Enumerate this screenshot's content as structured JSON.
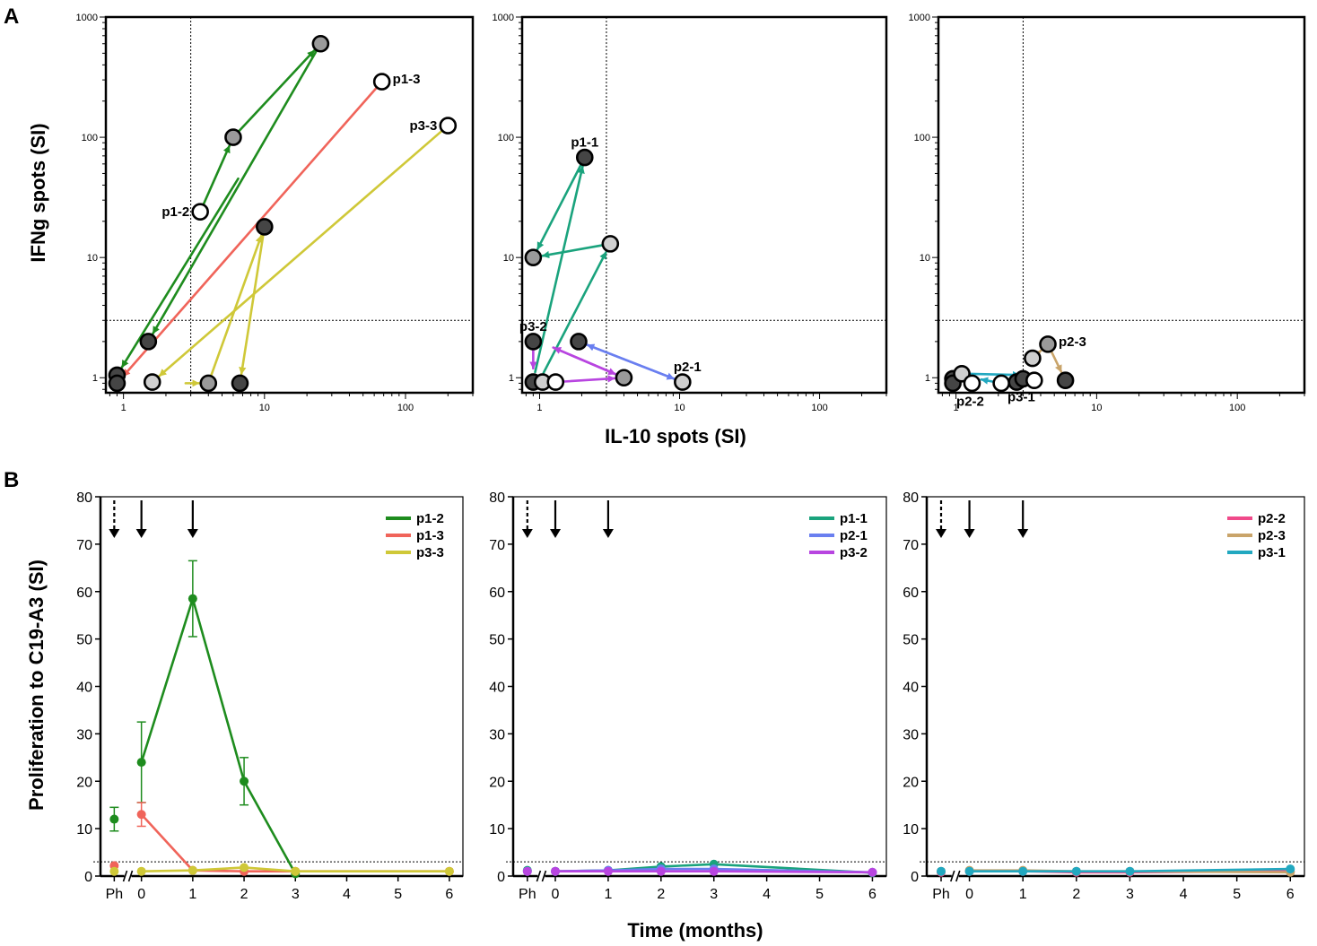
{
  "figure": {
    "panel_labels": [
      "A",
      "B"
    ],
    "a_xlabel": "IL-10 spots (SI)",
    "a_ylabel": "IFNg spots (SI)",
    "b_xlabel": "Time (months)",
    "b_ylabel": "Proliferation to C19-A3 (SI)"
  },
  "chart_data": [
    {
      "type": "scatter",
      "panel": "A-left",
      "xscale": "log",
      "yscale": "log",
      "xlim": [
        0.75,
        300
      ],
      "ylim": [
        0.75,
        1000
      ],
      "xticks": [
        "1",
        "10",
        "100"
      ],
      "yticks": [
        "1",
        "10",
        "100",
        "1000"
      ],
      "threshold_x": 3,
      "threshold_y": 3,
      "points": [
        {
          "x": 3.5,
          "y": 24,
          "fill": "white",
          "label": "p1-2",
          "label_side": "left"
        },
        {
          "x": 6,
          "y": 100,
          "fill": "grey"
        },
        {
          "x": 25,
          "y": 600,
          "fill": "grey"
        },
        {
          "x": 1.5,
          "y": 2,
          "fill": "dark"
        },
        {
          "x": 0.9,
          "y": 1.05,
          "fill": "dark"
        },
        {
          "x": 0.9,
          "y": 0.9,
          "fill": "dark"
        },
        {
          "x": 68,
          "y": 290,
          "fill": "white",
          "label": "p1-3",
          "label_side": "right"
        },
        {
          "x": 10,
          "y": 18,
          "fill": "dark"
        },
        {
          "x": 200,
          "y": 125,
          "fill": "white",
          "label": "p3-3",
          "label_side": "left"
        },
        {
          "x": 1.6,
          "y": 0.92,
          "fill": "light"
        },
        {
          "x": 4,
          "y": 0.9,
          "fill": "grey"
        },
        {
          "x": 6.7,
          "y": 0.9,
          "fill": "dark"
        }
      ],
      "arrows": [
        {
          "color": "#1e8c1e",
          "from": [
            3.5,
            24
          ],
          "to": [
            6,
            100
          ]
        },
        {
          "color": "#1e8c1e",
          "from": [
            6,
            100
          ],
          "to": [
            25,
            600
          ]
        },
        {
          "color": "#1e8c1e",
          "from": [
            25,
            600
          ],
          "to": [
            1.5,
            2
          ]
        },
        {
          "color": "#1e8c1e",
          "from": [
            7,
            52
          ],
          "to": [
            0.9,
            1.05
          ]
        },
        {
          "color": "#f0645a",
          "from": [
            68,
            290
          ],
          "to": [
            0.9,
            0.9
          ]
        },
        {
          "color": "#cfc838",
          "from": [
            200,
            125
          ],
          "to": [
            1.6,
            0.92
          ]
        },
        {
          "color": "#cfc838",
          "from": [
            2.4,
            0.9
          ],
          "to": [
            4,
            0.9
          ]
        },
        {
          "color": "#cfc838",
          "from": [
            4,
            0.9
          ],
          "to": [
            10,
            18
          ]
        },
        {
          "color": "#cfc838",
          "from": [
            10,
            18
          ],
          "to": [
            6.7,
            0.9
          ]
        }
      ]
    },
    {
      "type": "scatter",
      "panel": "A-middle",
      "xscale": "log",
      "yscale": "log",
      "xlim": [
        0.75,
        300
      ],
      "ylim": [
        0.75,
        1000
      ],
      "xticks": [
        "1",
        "10",
        "100"
      ],
      "yticks": [
        "1",
        "10",
        "100",
        "1000"
      ],
      "threshold_x": 3,
      "threshold_y": 3,
      "points": [
        {
          "x": 2.1,
          "y": 68,
          "fill": "dark",
          "label": "p1-1",
          "label_side": "above"
        },
        {
          "x": 3.2,
          "y": 13,
          "fill": "light"
        },
        {
          "x": 0.9,
          "y": 10,
          "fill": "grey"
        },
        {
          "x": 0.9,
          "y": 2,
          "fill": "dark",
          "label": "p3-2",
          "label_side": "above"
        },
        {
          "x": 1.9,
          "y": 2,
          "fill": "dark"
        },
        {
          "x": 0.9,
          "y": 0.92,
          "fill": "dark"
        },
        {
          "x": 1.05,
          "y": 0.92,
          "fill": "light"
        },
        {
          "x": 1.3,
          "y": 0.92,
          "fill": "white"
        },
        {
          "x": 4,
          "y": 1,
          "fill": "grey"
        },
        {
          "x": 10.5,
          "y": 0.92,
          "fill": "light",
          "label": "p2-1",
          "label_side": "aboveright"
        }
      ],
      "arrows": [
        {
          "color": "#1aa37d",
          "from": [
            0.9,
            0.95
          ],
          "to": [
            2.1,
            68
          ]
        },
        {
          "color": "#1aa37d",
          "from": [
            2.1,
            68
          ],
          "to": [
            0.9,
            10
          ]
        },
        {
          "color": "#1aa37d",
          "from": [
            3.2,
            13
          ],
          "to": [
            0.9,
            10
          ]
        },
        {
          "color": "#1aa37d",
          "from": [
            1,
            0.95
          ],
          "to": [
            3.2,
            13
          ]
        },
        {
          "color": "#6a7ff0",
          "from": [
            10.5,
            0.92
          ],
          "to": [
            1.9,
            2
          ]
        },
        {
          "color": "#6a7ff0",
          "from": [
            1.9,
            2
          ],
          "to": [
            10.5,
            0.92
          ]
        },
        {
          "color": "#b845e0",
          "from": [
            4,
            1
          ],
          "to": [
            1.1,
            1.9
          ]
        },
        {
          "color": "#b845e0",
          "from": [
            1.1,
            1.9
          ],
          "to": [
            4,
            1
          ]
        },
        {
          "color": "#b845e0",
          "from": [
            1.3,
            0.92
          ],
          "to": [
            4,
            1
          ]
        },
        {
          "color": "#b845e0",
          "from": [
            0.9,
            2
          ],
          "to": [
            0.9,
            1.0
          ]
        }
      ]
    },
    {
      "type": "scatter",
      "panel": "A-right",
      "xscale": "log",
      "yscale": "log",
      "xlim": [
        0.75,
        300
      ],
      "ylim": [
        0.75,
        1000
      ],
      "xticks": [
        "1",
        "10",
        "100"
      ],
      "yticks": [
        "1",
        "10",
        "100",
        "1000"
      ],
      "threshold_x": 3,
      "threshold_y": 3,
      "points": [
        {
          "x": 0.95,
          "y": 0.98,
          "fill": "dark"
        },
        {
          "x": 0.95,
          "y": 0.9,
          "fill": "dark"
        },
        {
          "x": 1.1,
          "y": 1.08,
          "fill": "light"
        },
        {
          "x": 1.3,
          "y": 0.9,
          "fill": "white",
          "label": "p2-2",
          "label_side": "below"
        },
        {
          "x": 2.1,
          "y": 0.9,
          "fill": "white"
        },
        {
          "x": 2.7,
          "y": 0.92,
          "fill": "dark"
        },
        {
          "x": 3,
          "y": 0.98,
          "fill": "dark",
          "label": "p3-1",
          "label_side": "below"
        },
        {
          "x": 3.6,
          "y": 0.95,
          "fill": "white"
        },
        {
          "x": 3.5,
          "y": 1.45,
          "fill": "light"
        },
        {
          "x": 4.5,
          "y": 1.9,
          "fill": "grey",
          "label": "p2-3",
          "label_side": "right"
        },
        {
          "x": 6,
          "y": 0.95,
          "fill": "dark"
        }
      ],
      "arrows": [
        {
          "color": "#c9a46a",
          "from": [
            4.5,
            1.9
          ],
          "to": [
            6,
            0.95
          ]
        },
        {
          "color": "#c9a46a",
          "from": [
            3.5,
            1.45
          ],
          "to": [
            4.5,
            1.9
          ]
        },
        {
          "color": "#22a8c0",
          "from": [
            1.1,
            1.08
          ],
          "to": [
            3.3,
            1.05
          ]
        },
        {
          "color": "#22a8c0",
          "from": [
            2.1,
            0.9
          ],
          "to": [
            1.3,
            1.0
          ]
        }
      ]
    },
    {
      "type": "line",
      "panel": "B-left",
      "ylabel": "Proliferation to C19-A3 (SI)",
      "xlabel": "Time (months)",
      "categories": [
        "Ph",
        "0",
        "1",
        "2",
        "3",
        "4",
        "5",
        "6"
      ],
      "ylim": [
        0,
        80
      ],
      "yticks": [
        "0",
        "10",
        "20",
        "30",
        "40",
        "50",
        "60",
        "70",
        "80"
      ],
      "threshold": 3,
      "vaccination_arrows": [
        {
          "x": "Ph",
          "style": "dashed"
        },
        {
          "x": "0",
          "style": "solid"
        },
        {
          "x": "1",
          "style": "solid"
        }
      ],
      "series": [
        {
          "name": "p1-2",
          "color": "#1e8c1e",
          "ph": 12,
          "ph_err": 2.5,
          "x": [
            0,
            1,
            2,
            3
          ],
          "values": [
            24,
            58.5,
            20,
            0.5
          ],
          "err": [
            8.5,
            8,
            5,
            null
          ]
        },
        {
          "name": "p1-3",
          "color": "#f0645a",
          "ph": 2.2,
          "ph_err": null,
          "x": [
            0,
            1,
            2,
            3,
            6
          ],
          "values": [
            13,
            1.2,
            1,
            1,
            1
          ],
          "err": [
            2.5,
            null,
            null,
            null,
            null
          ]
        },
        {
          "name": "p3-3",
          "color": "#cfc838",
          "ph": 1,
          "ph_err": null,
          "x": [
            0,
            1,
            2,
            3,
            6
          ],
          "values": [
            1,
            1.2,
            1.8,
            1,
            1
          ],
          "err": [
            null,
            null,
            null,
            null,
            null
          ]
        }
      ]
    },
    {
      "type": "line",
      "panel": "B-middle",
      "categories": [
        "Ph",
        "0",
        "1",
        "2",
        "3",
        "4",
        "5",
        "6"
      ],
      "ylim": [
        0,
        80
      ],
      "yticks": [
        "0",
        "10",
        "20",
        "30",
        "40",
        "50",
        "60",
        "70",
        "80"
      ],
      "threshold": 3,
      "vaccination_arrows": [
        {
          "x": "Ph",
          "style": "dashed"
        },
        {
          "x": "0",
          "style": "solid"
        },
        {
          "x": "1",
          "style": "solid"
        }
      ],
      "series": [
        {
          "name": "p1-1",
          "color": "#1aa37d",
          "ph": 1.2,
          "ph_err": null,
          "x": [
            0,
            1,
            2,
            3,
            6
          ],
          "values": [
            1,
            1.2,
            2,
            2.5,
            0.7
          ],
          "err": [
            null,
            null,
            null,
            null,
            null
          ]
        },
        {
          "name": "p2-1",
          "color": "#6a7ff0",
          "ph": 1,
          "ph_err": null,
          "x": [
            0,
            1,
            2,
            3,
            6
          ],
          "values": [
            1,
            1.2,
            1.5,
            1.5,
            0.8
          ],
          "err": [
            null,
            null,
            null,
            null,
            null
          ]
        },
        {
          "name": "p3-2",
          "color": "#b845e0",
          "ph": 1,
          "ph_err": null,
          "x": [
            0,
            1,
            2,
            3,
            6
          ],
          "values": [
            1,
            1,
            1,
            1,
            0.8
          ],
          "err": [
            null,
            null,
            null,
            null,
            null
          ]
        }
      ]
    },
    {
      "type": "line",
      "panel": "B-right",
      "categories": [
        "Ph",
        "0",
        "1",
        "2",
        "3",
        "4",
        "5",
        "6"
      ],
      "ylim": [
        0,
        80
      ],
      "yticks": [
        "0",
        "10",
        "20",
        "30",
        "40",
        "50",
        "60",
        "70",
        "80"
      ],
      "threshold": 3,
      "vaccination_arrows": [
        {
          "x": "Ph",
          "style": "dashed"
        },
        {
          "x": "0",
          "style": "solid"
        },
        {
          "x": "1",
          "style": "solid"
        }
      ],
      "series": [
        {
          "name": "p2-2",
          "color": "#f04a8a",
          "ph": 0.8,
          "ph_err": null,
          "x": [
            0,
            1,
            2,
            3,
            6
          ],
          "values": [
            1,
            1,
            0.8,
            0.8,
            1
          ],
          "err": [
            null,
            null,
            null,
            null,
            null
          ]
        },
        {
          "name": "p2-3",
          "color": "#c9a46a",
          "ph": 1,
          "ph_err": null,
          "x": [
            0,
            1,
            2,
            3,
            6
          ],
          "values": [
            1.2,
            1.2,
            1,
            1,
            0.8
          ],
          "err": [
            null,
            null,
            null,
            null,
            null
          ]
        },
        {
          "name": "p3-1",
          "color": "#22a8c0",
          "ph": 1,
          "ph_err": null,
          "x": [
            0,
            1,
            2,
            3,
            6
          ],
          "values": [
            1,
            1,
            1,
            1,
            1.5
          ],
          "err": [
            null,
            null,
            null,
            null,
            null
          ]
        }
      ]
    }
  ]
}
